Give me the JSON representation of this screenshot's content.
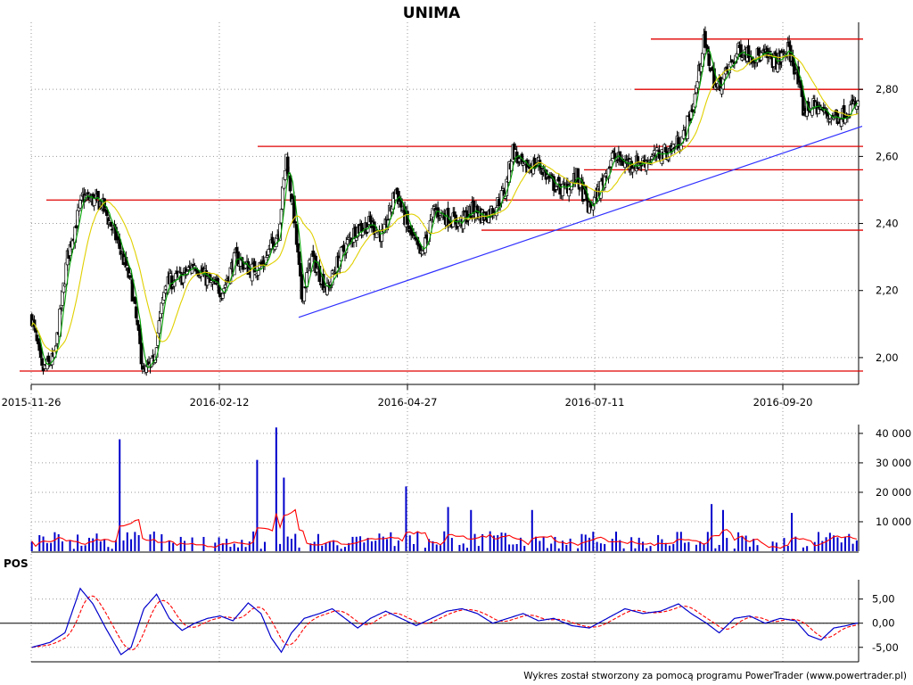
{
  "chart_data": [
    {
      "type": "candlestick",
      "title": "UNIMA",
      "x_ticks": [
        "2015-11-26",
        "2016-02-12",
        "2016-04-27",
        "2016-07-11",
        "2016-09-20"
      ],
      "y_ticks": [
        "2,00",
        "2,20",
        "2,40",
        "2,60",
        "2,80"
      ],
      "ylim": [
        1.92,
        3.0
      ],
      "grid": "dotted",
      "price_path": [
        [
          0,
          2.12
        ],
        [
          8,
          1.96
        ],
        [
          18,
          2.0
        ],
        [
          28,
          2.3
        ],
        [
          40,
          2.48
        ],
        [
          55,
          2.46
        ],
        [
          68,
          2.34
        ],
        [
          78,
          2.22
        ],
        [
          88,
          1.95
        ],
        [
          95,
          1.98
        ],
        [
          105,
          2.22
        ],
        [
          118,
          2.24
        ],
        [
          128,
          2.28
        ],
        [
          140,
          2.22
        ],
        [
          150,
          2.2
        ],
        [
          160,
          2.3
        ],
        [
          172,
          2.26
        ],
        [
          182,
          2.28
        ],
        [
          194,
          2.38
        ],
        [
          200,
          2.6
        ],
        [
          206,
          2.42
        ],
        [
          212,
          2.18
        ],
        [
          220,
          2.3
        ],
        [
          232,
          2.2
        ],
        [
          242,
          2.3
        ],
        [
          254,
          2.38
        ],
        [
          266,
          2.4
        ],
        [
          276,
          2.36
        ],
        [
          286,
          2.5
        ],
        [
          296,
          2.38
        ],
        [
          306,
          2.3
        ],
        [
          316,
          2.44
        ],
        [
          326,
          2.42
        ],
        [
          336,
          2.4
        ],
        [
          346,
          2.44
        ],
        [
          356,
          2.42
        ],
        [
          364,
          2.45
        ],
        [
          372,
          2.5
        ],
        [
          378,
          2.62
        ],
        [
          386,
          2.56
        ],
        [
          398,
          2.58
        ],
        [
          408,
          2.52
        ],
        [
          418,
          2.5
        ],
        [
          428,
          2.54
        ],
        [
          438,
          2.44
        ],
        [
          446,
          2.5
        ],
        [
          456,
          2.6
        ],
        [
          466,
          2.58
        ],
        [
          478,
          2.58
        ],
        [
          490,
          2.6
        ],
        [
          502,
          2.62
        ],
        [
          512,
          2.66
        ],
        [
          520,
          2.76
        ],
        [
          528,
          2.94
        ],
        [
          538,
          2.8
        ],
        [
          546,
          2.85
        ],
        [
          556,
          2.92
        ],
        [
          566,
          2.9
        ],
        [
          576,
          2.9
        ],
        [
          586,
          2.88
        ],
        [
          594,
          2.92
        ],
        [
          600,
          2.86
        ],
        [
          606,
          2.74
        ],
        [
          616,
          2.75
        ],
        [
          626,
          2.72
        ],
        [
          636,
          2.72
        ],
        [
          644,
          2.75
        ]
      ],
      "trend_line": [
        [
          1.0,
          2.12
        ],
        [
          3.0,
          2.69
        ]
      ],
      "horizontal_levels": [
        1.96,
        2.38,
        2.47,
        2.56,
        2.63,
        2.8,
        2.95
      ]
    },
    {
      "type": "bar",
      "name": "volume",
      "y_ticks": [
        "10 000",
        "20 000",
        "30 000",
        "40 000"
      ],
      "ylim": [
        0,
        43000
      ],
      "spikes": [
        [
          68,
          38000
        ],
        [
          178,
          31000
        ],
        [
          192,
          42000
        ],
        [
          198,
          25000
        ],
        [
          294,
          22000
        ],
        [
          326,
          15000
        ],
        [
          344,
          14000
        ],
        [
          394,
          14000
        ],
        [
          533,
          16000
        ],
        [
          544,
          14000
        ],
        [
          598,
          13000
        ]
      ]
    },
    {
      "type": "line",
      "name": "POS",
      "label": "POS",
      "y_ticks": [
        "5,00",
        "0,00",
        "-5,00"
      ],
      "ylim": [
        -8,
        9
      ],
      "values_path": [
        [
          0,
          -5
        ],
        [
          14,
          -4
        ],
        [
          26,
          -2
        ],
        [
          38,
          7.2
        ],
        [
          48,
          4
        ],
        [
          58,
          -1
        ],
        [
          70,
          -6.5
        ],
        [
          78,
          -5
        ],
        [
          88,
          3
        ],
        [
          98,
          6
        ],
        [
          108,
          1
        ],
        [
          118,
          -1.5
        ],
        [
          128,
          0
        ],
        [
          138,
          1
        ],
        [
          148,
          1.5
        ],
        [
          158,
          0.5
        ],
        [
          170,
          4.2
        ],
        [
          180,
          2
        ],
        [
          188,
          -3
        ],
        [
          196,
          -6
        ],
        [
          204,
          -2
        ],
        [
          214,
          1
        ],
        [
          226,
          2
        ],
        [
          236,
          3
        ],
        [
          246,
          1
        ],
        [
          256,
          -1
        ],
        [
          266,
          1
        ],
        [
          278,
          2.5
        ],
        [
          290,
          1
        ],
        [
          302,
          -0.5
        ],
        [
          314,
          1
        ],
        [
          326,
          2.5
        ],
        [
          338,
          3
        ],
        [
          350,
          2
        ],
        [
          362,
          0
        ],
        [
          374,
          1
        ],
        [
          386,
          2
        ],
        [
          398,
          0.5
        ],
        [
          410,
          1
        ],
        [
          424,
          -0.5
        ],
        [
          438,
          -1
        ],
        [
          452,
          1
        ],
        [
          466,
          3
        ],
        [
          480,
          2
        ],
        [
          494,
          2.5
        ],
        [
          508,
          4
        ],
        [
          518,
          2
        ],
        [
          530,
          0
        ],
        [
          540,
          -2
        ],
        [
          552,
          1
        ],
        [
          564,
          1.5
        ],
        [
          576,
          0
        ],
        [
          588,
          1
        ],
        [
          600,
          0.5
        ],
        [
          610,
          -2.5
        ],
        [
          620,
          -3.5
        ],
        [
          630,
          -1
        ],
        [
          640,
          -0.5
        ],
        [
          648,
          0
        ]
      ]
    }
  ],
  "footer": {
    "credit": "Wykres został stworzony za pomocą programu PowerTrader (www.powertrader.pl)"
  },
  "colors": {
    "series": "#00a000",
    "series2": "#e0d000",
    "levels": "#e00000",
    "trend": "#3030ff",
    "volume": "#0000cc",
    "volume_avg": "#ff0000",
    "pos_line": "#0000cc",
    "pos_signal": "#ff0000"
  }
}
